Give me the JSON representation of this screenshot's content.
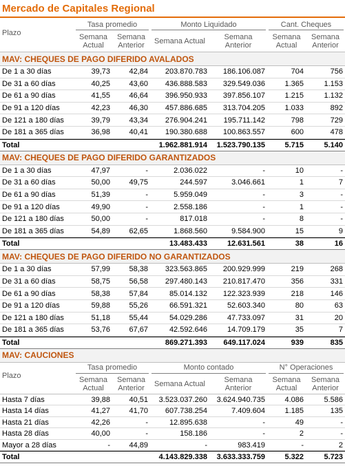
{
  "title": "Mercado de Capitales Regional",
  "header": {
    "plazo": "Plazo",
    "groups": [
      "Tasa promedio",
      "Monto Liquidado",
      "Cant. Cheques"
    ],
    "sub": [
      "Semana Actual",
      "Semana Anterior",
      "Semana Actual",
      "Semana Anterior",
      "Semana Actual",
      "Semana Anterior"
    ]
  },
  "sections": [
    {
      "title": "MAV: CHEQUES DE PAGO DIFERIDO AVALADOS",
      "rows": [
        [
          "De 1 a 30 días",
          "39,73",
          "42,84",
          "203.870.783",
          "186.106.087",
          "704",
          "756"
        ],
        [
          "De 31 a 60 días",
          "40,25",
          "43,60",
          "436.888.583",
          "329.549.036",
          "1.365",
          "1.153"
        ],
        [
          "De 61 a 90 días",
          "41,55",
          "46,64",
          "396.950.933",
          "397.856.107",
          "1.215",
          "1.132"
        ],
        [
          "De 91 a 120 días",
          "42,23",
          "46,30",
          "457.886.685",
          "313.704.205",
          "1.033",
          "892"
        ],
        [
          "De 121 a 180 días",
          "39,79",
          "43,34",
          "276.904.241",
          "195.711.142",
          "798",
          "729"
        ],
        [
          "De 181 a 365 días",
          "36,98",
          "40,41",
          "190.380.688",
          "100.863.557",
          "600",
          "478"
        ]
      ],
      "total": [
        "Total",
        "1.962.881.914",
        "1.523.790.135",
        "5.715",
        "5.140"
      ]
    },
    {
      "title": "MAV: CHEQUES DE PAGO DIFERIDO GARANTIZADOS",
      "rows": [
        [
          "De 1 a 30 días",
          "47,97",
          "-",
          "2.036.022",
          "-",
          "10",
          "-"
        ],
        [
          "De 31 a 60 días",
          "50,00",
          "49,75",
          "244.597",
          "3.046.661",
          "1",
          "7"
        ],
        [
          "De 61 a 90 días",
          "51,39",
          "-",
          "5.959.049",
          "-",
          "3",
          "-"
        ],
        [
          "De 91 a 120 días",
          "49,90",
          "-",
          "2.558.186",
          "-",
          "1",
          "-"
        ],
        [
          "De 121 a 180 días",
          "50,00",
          "-",
          "817.018",
          "-",
          "8",
          "-"
        ],
        [
          "De 181 a 365 días",
          "54,89",
          "62,65",
          "1.868.560",
          "9.584.900",
          "15",
          "9"
        ]
      ],
      "total": [
        "Total",
        "13.483.433",
        "12.631.561",
        "38",
        "16"
      ]
    },
    {
      "title": "MAV: CHEQUES DE PAGO DIFERIDO NO GARANTIZADOS",
      "rows": [
        [
          "De 1 a 30 días",
          "57,99",
          "58,38",
          "323.563.865",
          "200.929.999",
          "219",
          "268"
        ],
        [
          "De 31 a 60 días",
          "58,75",
          "56,58",
          "297.480.143",
          "210.817.470",
          "356",
          "331"
        ],
        [
          "De 61 a 90 días",
          "58,38",
          "57,84",
          "85.014.132",
          "122.323.939",
          "218",
          "146"
        ],
        [
          "De 91 a 120 días",
          "59,88",
          "55,26",
          "66.591.321",
          "52.603.340",
          "80",
          "63"
        ],
        [
          "De 121 a 180 días",
          "51,18",
          "55,44",
          "54.029.286",
          "47.733.097",
          "31",
          "20"
        ],
        [
          "De 181 a 365 días",
          "53,76",
          "67,67",
          "42.592.646",
          "14.709.179",
          "35",
          "7"
        ]
      ],
      "total": [
        "Total",
        "869.271.393",
        "649.117.024",
        "939",
        "835"
      ]
    },
    {
      "title": "MAV: CAUCIONES",
      "header": {
        "plazo": "Plazo",
        "groups": [
          "Tasa promedio",
          "Monto contado",
          "N° Operaciones"
        ],
        "sub": [
          "Semana Actual",
          "Semana Anterior",
          "Semana Actual",
          "Semana Anterior",
          "Semana Actual",
          "Semana Anterior"
        ]
      },
      "rows": [
        [
          "Hasta 7 días",
          "39,88",
          "40,51",
          "3.523.037.260",
          "3.624.940.735",
          "4.086",
          "5.586"
        ],
        [
          "Hasta 14 días",
          "41,27",
          "41,70",
          "607.738.254",
          "7.409.604",
          "1.185",
          "135"
        ],
        [
          "Hasta 21 días",
          "42,26",
          "-",
          "12.895.638",
          "-",
          "49",
          "-"
        ],
        [
          "Hasta 28 días",
          "40,00",
          "-",
          "158.186",
          "-",
          "2",
          "-"
        ],
        [
          "Mayor a 28 días",
          "-",
          "44,89",
          "-",
          "983.419",
          "-",
          "2"
        ]
      ],
      "total": [
        "Total",
        "4.143.829.338",
        "3.633.333.759",
        "5.322",
        "5.723"
      ]
    }
  ]
}
